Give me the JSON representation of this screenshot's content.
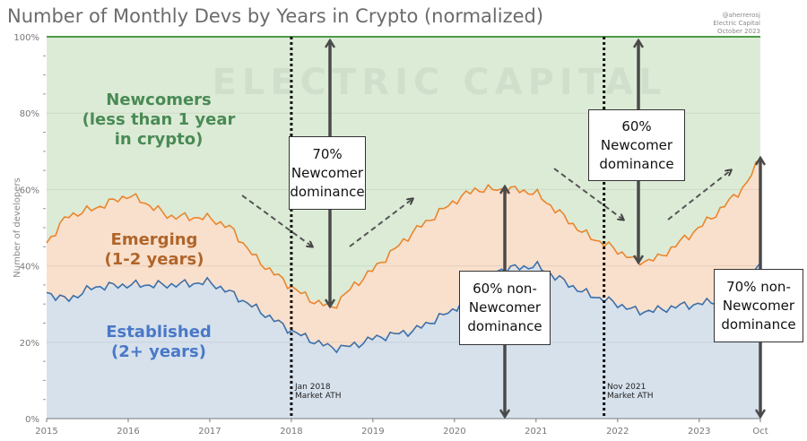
{
  "chart_data": {
    "type": "area",
    "stacked": true,
    "normalized": true,
    "title": "Number of Monthly Devs by Years in Crypto (normalized)",
    "ylabel": "Number of developers",
    "xlabel": "",
    "ylim": [
      0,
      100
    ],
    "yticks": [
      "0%",
      "20%",
      "40%",
      "60%",
      "80%",
      "100%"
    ],
    "xticks": [
      "2015",
      "2016",
      "2017",
      "2018",
      "2019",
      "2020",
      "2021",
      "2022",
      "2023",
      "Oct"
    ],
    "grid": true,
    "credits": [
      "@aherrerosj",
      "Electric Capital",
      "October 2023"
    ],
    "watermark": "ELECTRIC CAPITAL",
    "x": [
      "2015-01",
      "2015-04",
      "2015-08",
      "2016-01",
      "2016-03",
      "2016-07",
      "2017-01",
      "2017-04",
      "2017-08",
      "2018-01",
      "2018-04",
      "2018-07",
      "2018-10",
      "2019-01",
      "2019-07",
      "2020-01",
      "2020-04",
      "2020-07",
      "2020-10",
      "2021-01",
      "2021-04",
      "2021-08",
      "2022-01",
      "2022-04",
      "2022-07",
      "2022-10",
      "2023-01",
      "2023-04",
      "2023-08",
      "2023-10"
    ],
    "series": [
      {
        "name": "Established (2+ years)",
        "color": "#3d6fa8",
        "fill": "#d6e1ec",
        "values": [
          33,
          31,
          34.5,
          35,
          35,
          35,
          35.7,
          33,
          28.6,
          23,
          20.5,
          18.5,
          19,
          21,
          23,
          28.6,
          34.5,
          38.7,
          39.5,
          40,
          37,
          33,
          30,
          28,
          28.4,
          29.5,
          30,
          31,
          32,
          41.5
        ]
      },
      {
        "name": "Emerging (1-2 years)",
        "color": "#e8862e",
        "fill": "#f9e0cd",
        "cumulative_values": [
          46,
          53,
          55,
          58.5,
          57,
          53,
          52.5,
          50,
          41.5,
          34.5,
          31,
          29,
          34.5,
          39,
          49,
          57,
          60,
          60,
          60,
          59,
          54.5,
          48.5,
          44,
          41,
          42,
          46,
          50,
          54.5,
          61.5,
          68.5
        ]
      },
      {
        "name": "Newcomers (less than 1 year in crypto)",
        "color": "#4f9a4a",
        "fill": "#dcebd6",
        "cumulative_values": [
          100,
          100,
          100,
          100,
          100,
          100,
          100,
          100,
          100,
          100,
          100,
          100,
          100,
          100,
          100,
          100,
          100,
          100,
          100,
          100,
          100,
          100,
          100,
          100,
          100,
          100,
          100,
          100,
          100,
          100
        ]
      }
    ],
    "area_labels": {
      "newcomers": [
        "Newcomers",
        "(less than 1 year",
        "in crypto)"
      ],
      "emerging": [
        "Emerging",
        "(1-2 years)"
      ],
      "established": [
        "Established",
        "(2+ years)"
      ]
    },
    "annotations": {
      "ath_2018": [
        "Jan 2018",
        "Market ATH"
      ],
      "ath_2021": [
        "Nov 2021",
        "Market ATH"
      ],
      "box1": [
        "70%",
        "Newcomer",
        "dominance"
      ],
      "box2": [
        "60% non-",
        "Newcomer",
        "dominance"
      ],
      "box3": [
        "60%",
        "Newcomer",
        "dominance"
      ],
      "box4": [
        "70% non-",
        "Newcomer",
        "dominance"
      ]
    }
  }
}
